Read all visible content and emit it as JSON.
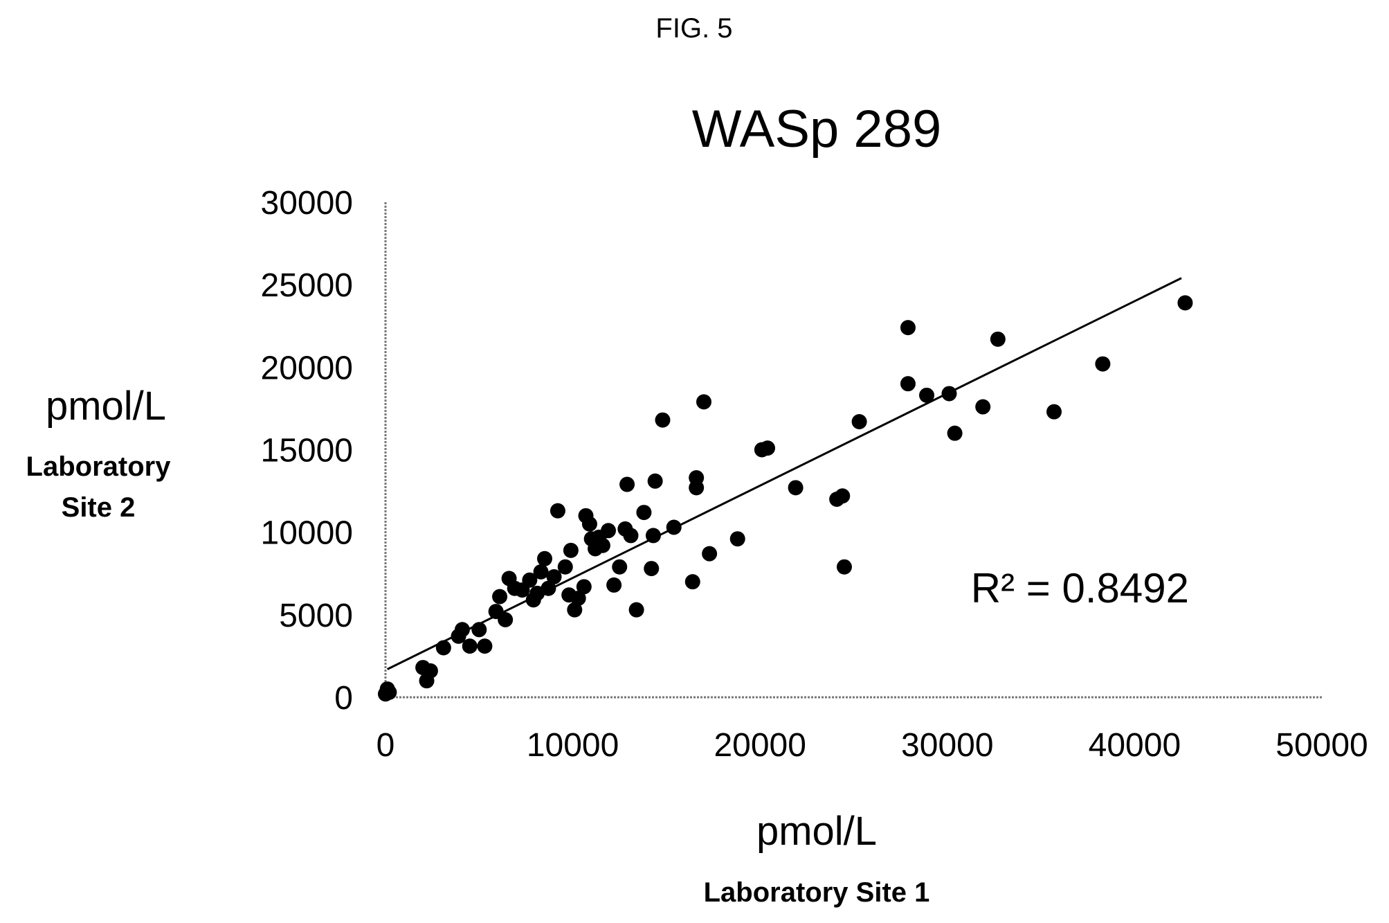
{
  "figure_label": "FIG. 5",
  "chart_data": {
    "type": "scatter",
    "title": "WASp 289",
    "xlabel": "pmol/L",
    "xlabel_sub": "Laboratory Site 1",
    "ylabel": "pmol/L",
    "ylabel_sub_lines": [
      "Laboratory",
      "Site 2"
    ],
    "xlim": [
      0,
      50000
    ],
    "ylim": [
      0,
      30000
    ],
    "x_ticks": [
      0,
      10000,
      20000,
      30000,
      40000,
      50000
    ],
    "x_tick_labels": [
      "0",
      "10000",
      "20000",
      "30000",
      "40000",
      "50000"
    ],
    "y_ticks": [
      0,
      5000,
      10000,
      15000,
      20000,
      25000,
      30000
    ],
    "y_tick_labels": [
      "0",
      "5000",
      "10000",
      "15000",
      "20000",
      "25000",
      "30000"
    ],
    "grid": false,
    "trendline": {
      "type": "linear",
      "x_range": [
        100,
        42500
      ],
      "y_at_start": 1700,
      "y_at_end": 25400
    },
    "annotation": "R² = 0.8492",
    "points": [
      {
        "x": 0,
        "y": 200
      },
      {
        "x": 100,
        "y": 500
      },
      {
        "x": 200,
        "y": 300
      },
      {
        "x": 2000,
        "y": 1800
      },
      {
        "x": 2200,
        "y": 1000
      },
      {
        "x": 2400,
        "y": 1600
      },
      {
        "x": 3100,
        "y": 3000
      },
      {
        "x": 3900,
        "y": 3700
      },
      {
        "x": 4100,
        "y": 4100
      },
      {
        "x": 4500,
        "y": 3100
      },
      {
        "x": 5000,
        "y": 4100
      },
      {
        "x": 5300,
        "y": 3100
      },
      {
        "x": 5900,
        "y": 5200
      },
      {
        "x": 6100,
        "y": 6100
      },
      {
        "x": 6400,
        "y": 4700
      },
      {
        "x": 6600,
        "y": 7200
      },
      {
        "x": 6900,
        "y": 6600
      },
      {
        "x": 7300,
        "y": 6500
      },
      {
        "x": 7700,
        "y": 7100
      },
      {
        "x": 7900,
        "y": 5900
      },
      {
        "x": 8100,
        "y": 6300
      },
      {
        "x": 8300,
        "y": 7600
      },
      {
        "x": 8500,
        "y": 8400
      },
      {
        "x": 8700,
        "y": 6600
      },
      {
        "x": 9000,
        "y": 7300
      },
      {
        "x": 9200,
        "y": 11300
      },
      {
        "x": 9600,
        "y": 7900
      },
      {
        "x": 9800,
        "y": 6200
      },
      {
        "x": 9900,
        "y": 8900
      },
      {
        "x": 10100,
        "y": 5300
      },
      {
        "x": 10300,
        "y": 6000
      },
      {
        "x": 10600,
        "y": 6700
      },
      {
        "x": 10700,
        "y": 11000
      },
      {
        "x": 10900,
        "y": 10500
      },
      {
        "x": 11000,
        "y": 9600
      },
      {
        "x": 11200,
        "y": 9000
      },
      {
        "x": 11400,
        "y": 9700
      },
      {
        "x": 11600,
        "y": 9200
      },
      {
        "x": 11900,
        "y": 10100
      },
      {
        "x": 12200,
        "y": 6800
      },
      {
        "x": 12500,
        "y": 7900
      },
      {
        "x": 12800,
        "y": 10200
      },
      {
        "x": 12900,
        "y": 12900
      },
      {
        "x": 13100,
        "y": 9800
      },
      {
        "x": 13400,
        "y": 5300
      },
      {
        "x": 13800,
        "y": 11200
      },
      {
        "x": 14200,
        "y": 7800
      },
      {
        "x": 14300,
        "y": 9800
      },
      {
        "x": 14400,
        "y": 13100
      },
      {
        "x": 14800,
        "y": 16800
      },
      {
        "x": 15400,
        "y": 10300
      },
      {
        "x": 16400,
        "y": 7000
      },
      {
        "x": 16600,
        "y": 12700
      },
      {
        "x": 16600,
        "y": 13300
      },
      {
        "x": 17000,
        "y": 17900
      },
      {
        "x": 17300,
        "y": 8700
      },
      {
        "x": 18800,
        "y": 9600
      },
      {
        "x": 20100,
        "y": 15000
      },
      {
        "x": 20400,
        "y": 15100
      },
      {
        "x": 21900,
        "y": 12700
      },
      {
        "x": 24100,
        "y": 12000
      },
      {
        "x": 24400,
        "y": 12200
      },
      {
        "x": 24500,
        "y": 7900
      },
      {
        "x": 25300,
        "y": 16700
      },
      {
        "x": 27900,
        "y": 22400
      },
      {
        "x": 27900,
        "y": 19000
      },
      {
        "x": 28900,
        "y": 18300
      },
      {
        "x": 30100,
        "y": 18400
      },
      {
        "x": 30400,
        "y": 16000
      },
      {
        "x": 31900,
        "y": 17600
      },
      {
        "x": 32700,
        "y": 21700
      },
      {
        "x": 35700,
        "y": 17300
      },
      {
        "x": 38300,
        "y": 20200
      },
      {
        "x": 42700,
        "y": 23900
      }
    ],
    "marker_color": "#000000",
    "line_color": "#000000"
  }
}
